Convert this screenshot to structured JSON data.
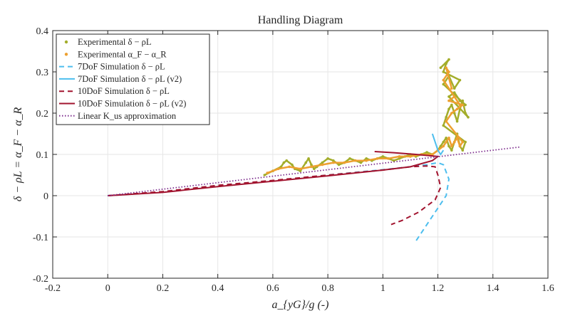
{
  "chart_data": {
    "type": "line",
    "title": "Handling Diagram",
    "xlabel": "a_{yG}/g (-)",
    "ylabel": "δ − ρL = α_F − α_R",
    "xlim": [
      -0.2,
      1.6
    ],
    "ylim": [
      -0.2,
      0.4
    ],
    "xticks": [
      -0.2,
      0,
      0.2,
      0.4,
      0.6,
      0.8,
      1,
      1.2,
      1.4,
      1.6
    ],
    "xtick_labels": [
      "-0.2",
      "0",
      "0.2",
      "0.4",
      "0.6",
      "0.8",
      "1",
      "1.2",
      "1.4",
      "1.6"
    ],
    "yticks": [
      -0.2,
      -0.1,
      0,
      0.1,
      0.2,
      0.3,
      0.4
    ],
    "ytick_labels": [
      "-0.2",
      "-0.1",
      "0",
      "0.1",
      "0.2",
      "0.3",
      "0.4"
    ],
    "grid": true,
    "legend_position": "top-left",
    "colors": {
      "exp_delta": "#a3ad2a",
      "exp_alpha": "#eda030",
      "sim7": "#4dbeee",
      "sim7v2": "#4dbeee",
      "sim10": "#a2142f",
      "sim10v2": "#a2142f",
      "linear": "#7e2f8e"
    },
    "series": [
      {
        "name": "Experimental δ − ρL",
        "style": "dots",
        "x": [
          0.57,
          0.6,
          0.63,
          0.64,
          0.65,
          0.67,
          0.68,
          0.7,
          0.72,
          0.73,
          0.74,
          0.75,
          0.76,
          0.78,
          0.8,
          0.82,
          0.84,
          0.86,
          0.88,
          0.9,
          0.92,
          0.94,
          0.96,
          0.98,
          1.0,
          1.02,
          1.04,
          1.06,
          1.08,
          1.1,
          1.12,
          1.14,
          1.16,
          1.18,
          1.2,
          1.21,
          1.22,
          1.23,
          1.24,
          1.25,
          1.26,
          1.27,
          1.28,
          1.29,
          1.3,
          1.22,
          1.23,
          1.24,
          1.25,
          1.26,
          1.27,
          1.28,
          1.29,
          1.3,
          1.31,
          1.24,
          1.26,
          1.28,
          1.3,
          1.22,
          1.24,
          1.26,
          1.28,
          1.22,
          1.23,
          1.24,
          1.21
        ],
        "y": [
          0.05,
          0.06,
          0.07,
          0.08,
          0.085,
          0.075,
          0.065,
          0.06,
          0.08,
          0.09,
          0.075,
          0.065,
          0.07,
          0.08,
          0.09,
          0.085,
          0.075,
          0.08,
          0.09,
          0.085,
          0.08,
          0.09,
          0.085,
          0.09,
          0.095,
          0.09,
          0.085,
          0.09,
          0.095,
          0.1,
          0.095,
          0.1,
          0.105,
          0.1,
          0.11,
          0.12,
          0.13,
          0.14,
          0.12,
          0.11,
          0.13,
          0.15,
          0.12,
          0.11,
          0.13,
          0.17,
          0.19,
          0.21,
          0.22,
          0.2,
          0.18,
          0.21,
          0.23,
          0.2,
          0.19,
          0.24,
          0.25,
          0.23,
          0.22,
          0.27,
          0.29,
          0.26,
          0.28,
          0.3,
          0.32,
          0.33,
          0.31
        ]
      },
      {
        "name": "Experimental α_F − α_R",
        "style": "dots",
        "x": [
          0.58,
          0.62,
          0.66,
          0.7,
          0.74,
          0.78,
          0.82,
          0.86,
          0.9,
          0.94,
          0.98,
          1.02,
          1.06,
          1.1,
          1.14,
          1.18,
          1.2,
          1.22,
          1.23,
          1.24,
          1.25,
          1.26,
          1.27,
          1.28,
          1.29,
          1.23,
          1.25,
          1.27,
          1.29,
          1.24,
          1.26,
          1.28,
          1.22,
          1.24,
          1.23,
          1.25
        ],
        "y": [
          0.055,
          0.065,
          0.07,
          0.065,
          0.07,
          0.075,
          0.08,
          0.08,
          0.085,
          0.085,
          0.09,
          0.09,
          0.095,
          0.095,
          0.1,
          0.1,
          0.11,
          0.12,
          0.13,
          0.14,
          0.12,
          0.13,
          0.14,
          0.12,
          0.13,
          0.18,
          0.2,
          0.21,
          0.22,
          0.23,
          0.24,
          0.22,
          0.28,
          0.3,
          0.31,
          0.26
        ]
      },
      {
        "name": "7DoF Simulation δ − ρL",
        "style": "dashed",
        "x": [
          0,
          0.2,
          0.4,
          0.6,
          0.8,
          1.0,
          1.1,
          1.16,
          1.2,
          1.22,
          1.24,
          1.23,
          1.2,
          1.16,
          1.12
        ],
        "y": [
          0,
          0.009,
          0.025,
          0.036,
          0.05,
          0.063,
          0.07,
          0.075,
          0.08,
          0.075,
          0.04,
          0.0,
          -0.03,
          -0.07,
          -0.11
        ]
      },
      {
        "name": "7DoF Simulation δ − ρL (v2)",
        "style": "solid",
        "x": [
          1.18,
          1.19,
          1.2,
          1.21,
          1.22
        ],
        "y": [
          0.15,
          0.13,
          0.11,
          0.1,
          0.11
        ]
      },
      {
        "name": "10DoF Simulation δ − ρL",
        "style": "dashed",
        "x": [
          0,
          0.2,
          0.4,
          0.6,
          0.8,
          1.0,
          1.1,
          1.16,
          1.19,
          1.2,
          1.21,
          1.19,
          1.13,
          1.07,
          1.03
        ],
        "y": [
          0,
          0.01,
          0.025,
          0.037,
          0.05,
          0.062,
          0.07,
          0.072,
          0.07,
          0.05,
          0.02,
          -0.01,
          -0.04,
          -0.06,
          -0.07
        ]
      },
      {
        "name": "10DoF Simulation δ − ρL (v2)",
        "style": "solid",
        "x": [
          0,
          0.2,
          0.4,
          0.6,
          0.8,
          1.0,
          1.1,
          1.18,
          1.2,
          1.12,
          1.04,
          0.97
        ],
        "y": [
          0,
          0.008,
          0.022,
          0.035,
          0.048,
          0.062,
          0.07,
          0.085,
          0.095,
          0.1,
          0.104,
          0.107
        ]
      },
      {
        "name": "Linear K_us approximation",
        "style": "dotted",
        "x": [
          0,
          1.5
        ],
        "y": [
          0,
          0.118
        ]
      }
    ]
  }
}
